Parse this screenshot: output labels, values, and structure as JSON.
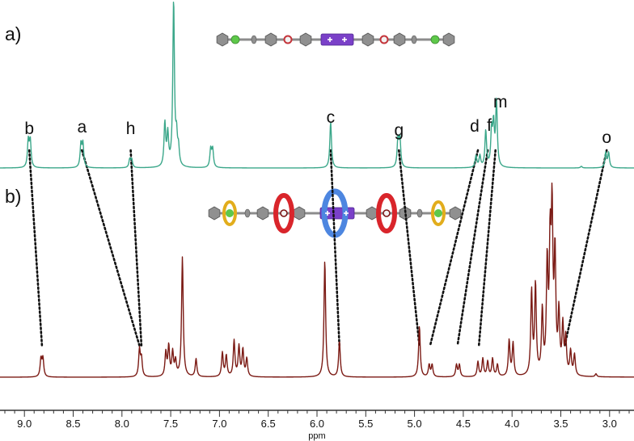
{
  "chart_data": {
    "type": "line",
    "xlabel": "ppm",
    "xlim": [
      9.25,
      2.75
    ],
    "x_reversed": true,
    "xticks": [
      9.0,
      8.5,
      8.0,
      7.5,
      7.0,
      6.5,
      6.0,
      5.5,
      5.0,
      4.5,
      4.0,
      3.5,
      3.0
    ],
    "xtick_labels": [
      "9.0",
      "8.5",
      "8.0",
      "7.5",
      "7.0",
      "6.5",
      "6.0",
      "5.5",
      "5.0",
      "4.5",
      "4.0",
      "3.5",
      "3.0"
    ],
    "panels": [
      {
        "label": "a)",
        "color": "#3ba78a",
        "peaks": [
          {
            "ppm": 8.96,
            "h": 0.16
          },
          {
            "ppm": 8.94,
            "h": 0.16
          },
          {
            "ppm": 8.42,
            "h": 0.14
          },
          {
            "ppm": 8.4,
            "h": 0.14
          },
          {
            "ppm": 7.92,
            "h": 0.05
          },
          {
            "ppm": 7.9,
            "h": 0.05
          },
          {
            "ppm": 7.56,
            "h": 0.26
          },
          {
            "ppm": 7.53,
            "h": 0.19
          },
          {
            "ppm": 7.47,
            "h": 1.0
          },
          {
            "ppm": 7.44,
            "h": 0.16
          },
          {
            "ppm": 7.42,
            "h": 0.1
          },
          {
            "ppm": 7.09,
            "h": 0.11
          },
          {
            "ppm": 7.07,
            "h": 0.11
          },
          {
            "ppm": 5.86,
            "h": 0.28
          },
          {
            "ppm": 5.17,
            "h": 0.17
          },
          {
            "ppm": 5.15,
            "h": 0.17
          },
          {
            "ppm": 4.37,
            "h": 0.07
          },
          {
            "ppm": 4.33,
            "h": 0.07
          },
          {
            "ppm": 4.27,
            "h": 0.22
          },
          {
            "ppm": 4.21,
            "h": 0.21
          },
          {
            "ppm": 4.19,
            "h": 0.24
          },
          {
            "ppm": 4.16,
            "h": 0.39
          },
          {
            "ppm": 3.29,
            "h": 0.01
          },
          {
            "ppm": 3.04,
            "h": 0.09
          },
          {
            "ppm": 3.01,
            "h": 0.09
          }
        ],
        "annotations": [
          {
            "text": "b",
            "ppm": 8.95
          },
          {
            "text": "a",
            "ppm": 8.41
          },
          {
            "text": "h",
            "ppm": 7.91
          },
          {
            "text": "c",
            "ppm": 5.86
          },
          {
            "text": "g",
            "ppm": 5.16
          },
          {
            "text": "d",
            "ppm": 4.35
          },
          {
            "text": "f",
            "ppm": 4.25
          },
          {
            "text": "m",
            "ppm": 4.17
          },
          {
            "text": "o",
            "ppm": 3.03
          }
        ]
      },
      {
        "label": "b)",
        "color": "#7b1a14",
        "peaks": [
          {
            "ppm": 8.83,
            "h": 0.06
          },
          {
            "ppm": 8.81,
            "h": 0.06
          },
          {
            "ppm": 7.82,
            "h": 0.09
          },
          {
            "ppm": 7.8,
            "h": 0.06
          },
          {
            "ppm": 7.55,
            "h": 0.08
          },
          {
            "ppm": 7.52,
            "h": 0.1
          },
          {
            "ppm": 7.48,
            "h": 0.08
          },
          {
            "ppm": 7.45,
            "h": 0.05
          },
          {
            "ppm": 7.38,
            "h": 0.4
          },
          {
            "ppm": 7.24,
            "h": 0.06
          },
          {
            "ppm": 6.97,
            "h": 0.08
          },
          {
            "ppm": 6.93,
            "h": 0.07
          },
          {
            "ppm": 6.85,
            "h": 0.12
          },
          {
            "ppm": 6.8,
            "h": 0.1
          },
          {
            "ppm": 6.76,
            "h": 0.09
          },
          {
            "ppm": 6.72,
            "h": 0.06
          },
          {
            "ppm": 5.92,
            "h": 0.39
          },
          {
            "ppm": 5.77,
            "h": 0.12
          },
          {
            "ppm": 4.95,
            "h": 0.17
          },
          {
            "ppm": 4.85,
            "h": 0.04
          },
          {
            "ppm": 4.82,
            "h": 0.04
          },
          {
            "ppm": 4.57,
            "h": 0.04
          },
          {
            "ppm": 4.54,
            "h": 0.04
          },
          {
            "ppm": 4.35,
            "h": 0.05
          },
          {
            "ppm": 4.3,
            "h": 0.06
          },
          {
            "ppm": 4.25,
            "h": 0.05
          },
          {
            "ppm": 4.2,
            "h": 0.06
          },
          {
            "ppm": 4.15,
            "h": 0.04
          },
          {
            "ppm": 4.03,
            "h": 0.12
          },
          {
            "ppm": 3.99,
            "h": 0.11
          },
          {
            "ppm": 3.8,
            "h": 0.28
          },
          {
            "ppm": 3.76,
            "h": 0.3
          },
          {
            "ppm": 3.69,
            "h": 0.21
          },
          {
            "ppm": 3.64,
            "h": 0.36
          },
          {
            "ppm": 3.61,
            "h": 0.4
          },
          {
            "ppm": 3.59,
            "h": 0.51
          },
          {
            "ppm": 3.56,
            "h": 0.39
          },
          {
            "ppm": 3.52,
            "h": 0.2
          },
          {
            "ppm": 3.48,
            "h": 0.16
          },
          {
            "ppm": 3.45,
            "h": 0.12
          },
          {
            "ppm": 3.4,
            "h": 0.08
          },
          {
            "ppm": 3.36,
            "h": 0.07
          },
          {
            "ppm": 3.14,
            "h": 0.01
          }
        ]
      }
    ],
    "correlations": [
      {
        "label": "b",
        "from": 8.95,
        "to": 8.82
      },
      {
        "label": "a",
        "from": 8.41,
        "to": 7.82
      },
      {
        "label": "h",
        "from": 7.91,
        "to": 7.8
      },
      {
        "label": "c",
        "from": 5.86,
        "to": 5.77
      },
      {
        "label": "g",
        "from": 5.16,
        "to": 4.95
      },
      {
        "label": "d",
        "from": 4.35,
        "to": 4.84
      },
      {
        "label": "f",
        "from": 4.25,
        "to": 4.56
      },
      {
        "label": "m",
        "from": 4.17,
        "to": 4.34
      },
      {
        "label": "o",
        "from": 3.03,
        "to": 3.46
      }
    ],
    "molecule_colors": {
      "axle": "#8c8c8c",
      "phenyl": "#909090",
      "green_end": "#5ec84a",
      "red_site": "#c4343a",
      "purple_core": "#7a40c8",
      "ring_red": "#d9252b",
      "ring_blue": "#4d86e0",
      "ring_yellow": "#e2ad1c"
    }
  }
}
